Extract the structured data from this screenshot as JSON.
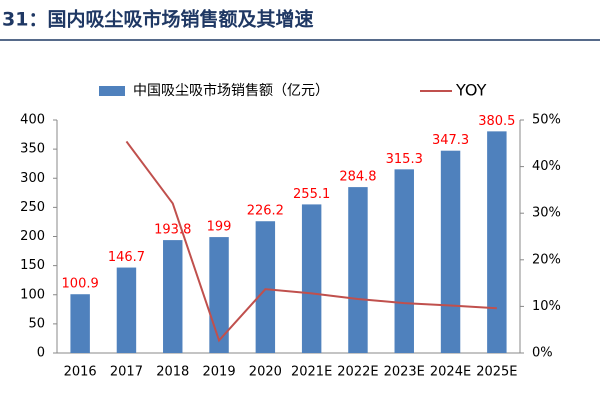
{
  "chart_data": {
    "type": "bar",
    "title": "31：国内吸尘吸市场销售额及其增速",
    "categories": [
      "2016",
      "2017",
      "2018",
      "2019",
      "2020",
      "2021E",
      "2022E",
      "2023E",
      "2024E",
      "2025E"
    ],
    "series": [
      {
        "name": "中国吸尘吸市场销售额（亿元）",
        "color": "#4f81bd",
        "values": [
          100.9,
          146.7,
          193.8,
          199,
          226.2,
          255.1,
          284.8,
          315.3,
          347.3,
          380.5
        ]
      },
      {
        "name": "YOY",
        "color": "#c0504d",
        "type": "line",
        "axis": "y2",
        "values": [
          null,
          45.4,
          32.1,
          2.7,
          13.7,
          12.8,
          11.6,
          10.7,
          10.2,
          9.6
        ]
      }
    ],
    "ylim": [
      0,
      400
    ],
    "yticks": [
      0,
      50,
      100,
      150,
      200,
      250,
      300,
      350,
      400
    ],
    "y2lim": [
      0,
      50
    ],
    "y2ticks": [
      {
        "value": 0,
        "label": "0%"
      },
      {
        "value": 10,
        "label": "10%"
      },
      {
        "value": 20,
        "label": "20%"
      },
      {
        "value": 30,
        "label": "30%"
      },
      {
        "value": 40,
        "label": "40%"
      },
      {
        "value": 50,
        "label": "50%"
      }
    ],
    "value_label_color": "#ff0000"
  }
}
